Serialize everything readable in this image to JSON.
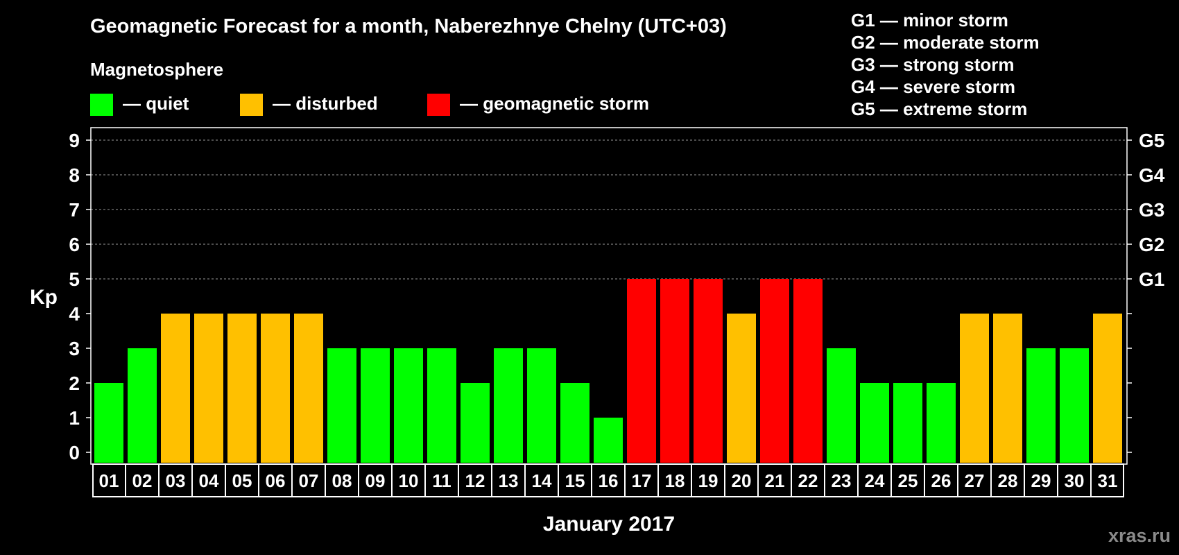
{
  "chart_data": {
    "type": "bar",
    "title": "Geomagnetic Forecast for a month, Naberezhnye Chelny (UTC+03)",
    "subtitle": "Magnetosphere",
    "xlabel": "January 2017",
    "ylabel": "Kp",
    "ylim": [
      0,
      9
    ],
    "yticks": [
      "0",
      "1",
      "2",
      "3",
      "4",
      "5",
      "6",
      "7",
      "8",
      "9"
    ],
    "right_ticks": [
      {
        "kp": 5,
        "label": "G1"
      },
      {
        "kp": 6,
        "label": "G2"
      },
      {
        "kp": 7,
        "label": "G3"
      },
      {
        "kp": 8,
        "label": "G4"
      },
      {
        "kp": 9,
        "label": "G5"
      }
    ],
    "grid_from_kp": 5,
    "categories": [
      "01",
      "02",
      "03",
      "04",
      "05",
      "06",
      "07",
      "08",
      "09",
      "10",
      "11",
      "12",
      "13",
      "14",
      "15",
      "16",
      "17",
      "18",
      "19",
      "20",
      "21",
      "22",
      "23",
      "24",
      "25",
      "26",
      "27",
      "28",
      "29",
      "30",
      "31"
    ],
    "values": [
      2,
      3,
      4,
      4,
      4,
      4,
      4,
      3,
      3,
      3,
      3,
      2,
      3,
      3,
      2,
      1,
      5,
      5,
      5,
      4,
      5,
      5,
      3,
      2,
      2,
      2,
      4,
      4,
      3,
      3,
      4
    ],
    "status_legend": [
      {
        "key": "quiet",
        "label": "— quiet",
        "color": "#00ff00"
      },
      {
        "key": "disturbed",
        "label": "— disturbed",
        "color": "#ffc000"
      },
      {
        "key": "storm",
        "label": "— geomagnetic storm",
        "color": "#ff0000"
      }
    ],
    "storm_scale": [
      "G1 — minor storm",
      "G2 — moderate storm",
      "G3 — strong storm",
      "G4 — severe storm",
      "G5 — extreme storm"
    ],
    "watermark": "xras.ru"
  }
}
